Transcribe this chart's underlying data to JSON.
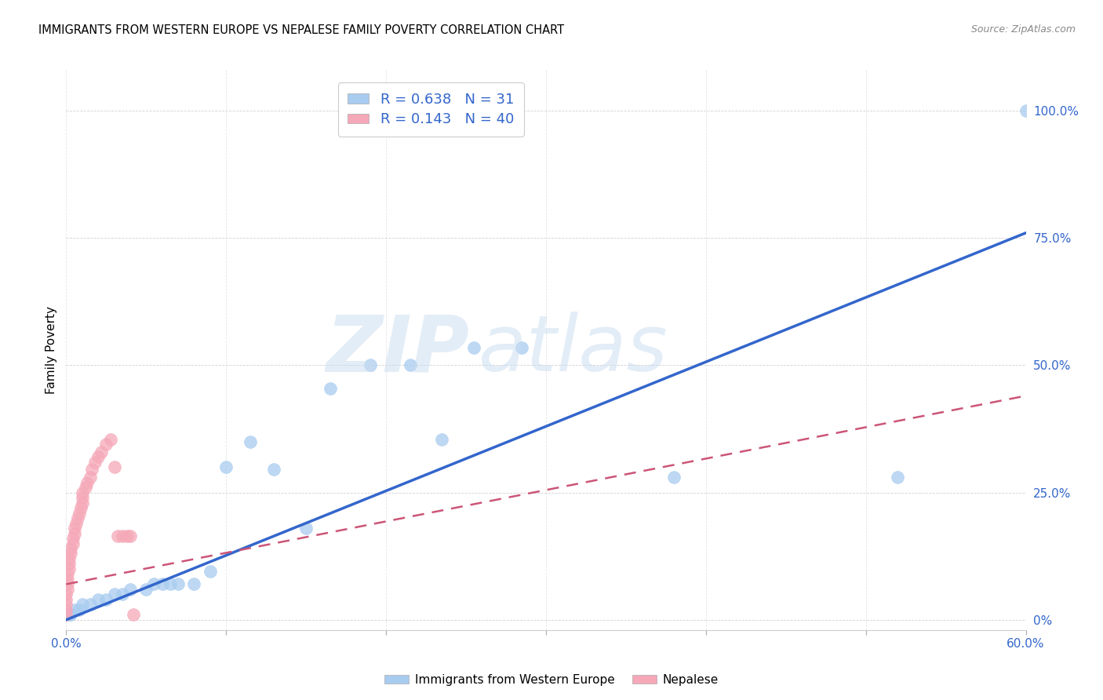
{
  "title": "IMMIGRANTS FROM WESTERN EUROPE VS NEPALESE FAMILY POVERTY CORRELATION CHART",
  "source": "Source: ZipAtlas.com",
  "ylabel": "Family Poverty",
  "xlim": [
    0.0,
    0.6
  ],
  "ylim": [
    -0.02,
    1.08
  ],
  "blue_color": "#A8CCF0",
  "pink_color": "#F5A8B8",
  "blue_line_color": "#3366CC",
  "pink_line_color": "#CC5577",
  "R_blue": 0.638,
  "N_blue": 31,
  "R_pink": 0.143,
  "N_pink": 40,
  "legend_label_blue": "Immigrants from Western Europe",
  "legend_label_pink": "Nepalese",
  "blue_x": [
    0.002,
    0.003,
    0.005,
    0.008,
    0.01,
    0.015,
    0.02,
    0.025,
    0.03,
    0.035,
    0.04,
    0.05,
    0.055,
    0.06,
    0.065,
    0.07,
    0.08,
    0.09,
    0.1,
    0.115,
    0.13,
    0.15,
    0.165,
    0.19,
    0.215,
    0.235,
    0.255,
    0.285,
    0.52,
    0.6,
    0.38
  ],
  "blue_y": [
    0.01,
    0.01,
    0.02,
    0.02,
    0.03,
    0.03,
    0.04,
    0.04,
    0.05,
    0.05,
    0.06,
    0.06,
    0.07,
    0.07,
    0.07,
    0.07,
    0.07,
    0.095,
    0.3,
    0.35,
    0.295,
    0.18,
    0.455,
    0.5,
    0.5,
    0.355,
    0.535,
    0.535,
    0.28,
    1.0,
    0.28
  ],
  "pink_x": [
    0.0,
    0.0,
    0.0,
    0.0,
    0.0,
    0.001,
    0.001,
    0.001,
    0.001,
    0.002,
    0.002,
    0.002,
    0.003,
    0.003,
    0.004,
    0.004,
    0.005,
    0.005,
    0.006,
    0.007,
    0.008,
    0.009,
    0.01,
    0.01,
    0.01,
    0.012,
    0.013,
    0.015,
    0.016,
    0.018,
    0.02,
    0.022,
    0.025,
    0.028,
    0.03,
    0.032,
    0.035,
    0.038,
    0.04,
    0.042
  ],
  "pink_y": [
    0.01,
    0.02,
    0.03,
    0.04,
    0.05,
    0.06,
    0.07,
    0.08,
    0.09,
    0.1,
    0.11,
    0.12,
    0.13,
    0.14,
    0.15,
    0.16,
    0.17,
    0.18,
    0.19,
    0.2,
    0.21,
    0.22,
    0.23,
    0.24,
    0.25,
    0.26,
    0.27,
    0.28,
    0.295,
    0.31,
    0.32,
    0.33,
    0.345,
    0.355,
    0.3,
    0.165,
    0.165,
    0.165,
    0.165,
    0.01
  ],
  "x_ticks": [
    0.0,
    0.1,
    0.2,
    0.3,
    0.4,
    0.5,
    0.6
  ],
  "y_ticks": [
    0.0,
    0.25,
    0.5,
    0.75,
    1.0
  ],
  "y_tick_labels": [
    "0%",
    "25.0%",
    "50.0%",
    "75.0%",
    "100.0%"
  ],
  "watermark_text": "ZIPatlas",
  "watermark_color": "#C8DCF0"
}
